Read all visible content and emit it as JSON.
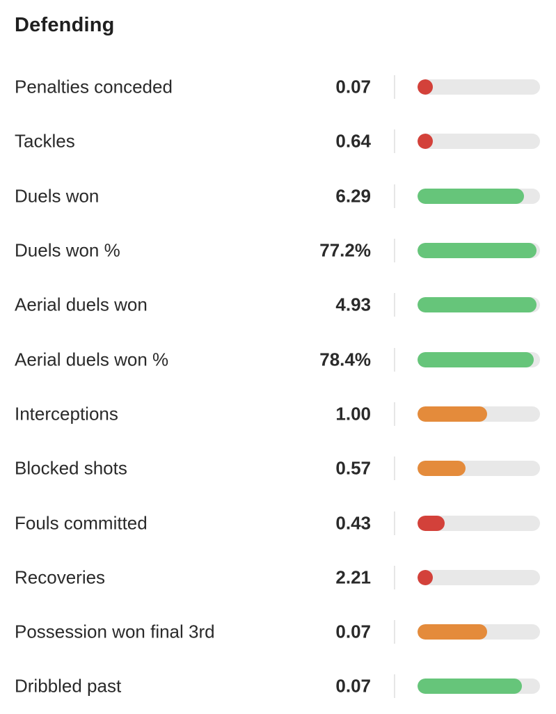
{
  "section": {
    "title": "Defending"
  },
  "colors": {
    "good": "#66c57a",
    "average": "#e48b3b",
    "poor": "#d3413a",
    "track": "#e8e8e8"
  },
  "stats": [
    {
      "label": "Penalties conceded",
      "value": "0.07",
      "level": 0.06,
      "rating": "poor"
    },
    {
      "label": "Tackles",
      "value": "0.64",
      "level": 0.06,
      "rating": "poor"
    },
    {
      "label": "Duels won",
      "value": "6.29",
      "level": 0.87,
      "rating": "good"
    },
    {
      "label": "Duels won %",
      "value": "77.2%",
      "level": 0.97,
      "rating": "good"
    },
    {
      "label": "Aerial duels won",
      "value": "4.93",
      "level": 0.97,
      "rating": "good"
    },
    {
      "label": "Aerial duels won %",
      "value": "78.4%",
      "level": 0.95,
      "rating": "good"
    },
    {
      "label": "Interceptions",
      "value": "1.00",
      "level": 0.57,
      "rating": "average"
    },
    {
      "label": "Blocked shots",
      "value": "0.57",
      "level": 0.39,
      "rating": "average"
    },
    {
      "label": "Fouls committed",
      "value": "0.43",
      "level": 0.22,
      "rating": "poor"
    },
    {
      "label": "Recoveries",
      "value": "2.21",
      "level": 0.06,
      "rating": "poor"
    },
    {
      "label": "Possession won final 3rd",
      "value": "0.07",
      "level": 0.57,
      "rating": "average"
    },
    {
      "label": "Dribbled past",
      "value": "0.07",
      "level": 0.85,
      "rating": "good"
    }
  ]
}
